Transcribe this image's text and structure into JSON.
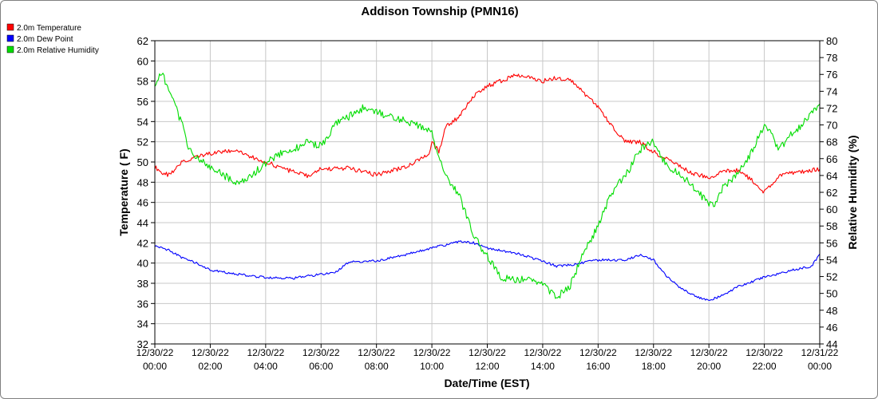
{
  "chart_data": {
    "type": "line",
    "title": "Addison Township (PMN16)",
    "xlabel": "Date/Time (EST)",
    "ylabel_left": "Temperature ( F)",
    "ylabel_right": "Relative Humidity (%)",
    "ylim_left": [
      32,
      62
    ],
    "ylim_right": [
      44,
      80
    ],
    "yticks_left": [
      "32",
      "34",
      "36",
      "38",
      "40",
      "42",
      "44",
      "46",
      "48",
      "50",
      "52",
      "54",
      "56",
      "58",
      "60",
      "62"
    ],
    "yticks_right": [
      "44",
      "46",
      "48",
      "50",
      "52",
      "54",
      "56",
      "58",
      "60",
      "62",
      "64",
      "66",
      "68",
      "70",
      "72",
      "74",
      "76",
      "78",
      "80"
    ],
    "xticks": [
      {
        "date": "12/30/22",
        "time": "00:00"
      },
      {
        "date": "12/30/22",
        "time": "02:00"
      },
      {
        "date": "12/30/22",
        "time": "04:00"
      },
      {
        "date": "12/30/22",
        "time": "06:00"
      },
      {
        "date": "12/30/22",
        "time": "08:00"
      },
      {
        "date": "12/30/22",
        "time": "10:00"
      },
      {
        "date": "12/30/22",
        "time": "12:00"
      },
      {
        "date": "12/30/22",
        "time": "14:00"
      },
      {
        "date": "12/30/22",
        "time": "16:00"
      },
      {
        "date": "12/30/22",
        "time": "18:00"
      },
      {
        "date": "12/30/22",
        "time": "20:00"
      },
      {
        "date": "12/30/22",
        "time": "22:00"
      },
      {
        "date": "12/31/22",
        "time": "00:00"
      }
    ],
    "grid": true,
    "legend_position": "top-left",
    "x_unit_note": "hours",
    "series": [
      {
        "name": "2.0m Temperature",
        "axis": "left",
        "color": "#ff0000",
        "x": [
          0,
          0.25,
          0.5,
          0.75,
          1,
          1.5,
          2,
          2.5,
          3,
          3.5,
          4,
          4.5,
          5,
          5.5,
          6,
          7,
          8,
          9,
          9.5,
          9.9,
          10,
          10.25,
          10.5,
          11,
          11.5,
          12,
          12.5,
          13,
          13.5,
          14,
          14.5,
          15,
          15.5,
          16,
          16.5,
          17,
          17.5,
          18,
          18.5,
          19,
          19.5,
          20,
          20.5,
          21,
          21.5,
          22,
          22.5,
          23,
          23.5,
          24
        ],
        "y": [
          49.5,
          49.0,
          48.7,
          49.3,
          50.0,
          50.5,
          50.8,
          51.0,
          51.2,
          50.5,
          50.0,
          49.5,
          49.0,
          48.6,
          49.3,
          49.4,
          48.7,
          49.5,
          50.2,
          50.8,
          52.0,
          51.0,
          53.5,
          54.5,
          56.5,
          57.5,
          58.0,
          58.6,
          58.5,
          58.0,
          58.3,
          58.2,
          56.8,
          55.5,
          53.5,
          52.0,
          52.0,
          51.0,
          50.3,
          49.5,
          48.8,
          48.5,
          49.0,
          49.2,
          48.3,
          47.0,
          48.6,
          48.9,
          49.1,
          49.3
        ]
      },
      {
        "name": "2.0m Dew Point",
        "axis": "left",
        "color": "#0000ff",
        "x": [
          0,
          0.5,
          1,
          1.5,
          2,
          2.5,
          3,
          3.5,
          4,
          5,
          6,
          6.5,
          7,
          8,
          9,
          10,
          11,
          11.5,
          12,
          13,
          14,
          14.5,
          15,
          16,
          17,
          17.5,
          18,
          18.5,
          19,
          19.5,
          20,
          20.5,
          21,
          22,
          23,
          23.7,
          24
        ],
        "y": [
          41.7,
          41.3,
          40.5,
          40.0,
          39.3,
          39.1,
          38.9,
          38.7,
          38.6,
          38.5,
          38.9,
          39.0,
          40.1,
          40.2,
          40.8,
          41.5,
          42.1,
          42.0,
          41.5,
          41.0,
          40.2,
          39.7,
          39.8,
          40.3,
          40.3,
          40.8,
          40.3,
          38.6,
          37.5,
          36.7,
          36.3,
          36.8,
          37.6,
          38.6,
          39.3,
          39.7,
          40.9
        ]
      },
      {
        "name": "2.0m Relative Humidity",
        "axis": "right",
        "color": "#00dd00",
        "x": [
          0,
          0.25,
          0.5,
          0.75,
          1,
          1.25,
          1.5,
          2,
          2.5,
          3,
          3.5,
          4,
          4.5,
          5,
          5.5,
          6,
          6.5,
          7,
          7.5,
          8,
          8.5,
          9,
          9.5,
          10,
          10.25,
          10.5,
          11,
          11.5,
          11.75,
          12,
          12.5,
          13,
          13.5,
          14,
          14.5,
          15,
          15.5,
          16,
          16.5,
          17,
          17.5,
          18,
          18.5,
          19,
          19.5,
          20,
          20.25,
          20.5,
          21,
          21.5,
          22,
          22.25,
          22.5,
          23,
          23.5,
          24
        ],
        "y": [
          75.0,
          76.0,
          74.5,
          72.0,
          70.0,
          67.0,
          66.0,
          65.0,
          64.0,
          63.0,
          64.0,
          65.5,
          66.5,
          67.0,
          68.0,
          67.5,
          70.0,
          71.0,
          72.0,
          71.5,
          71.0,
          70.5,
          70.0,
          69.0,
          66.0,
          64.0,
          61.5,
          57.0,
          55.5,
          54.5,
          52.0,
          51.5,
          52.0,
          51.0,
          49.5,
          51.0,
          55.0,
          58.0,
          62.0,
          64.0,
          67.0,
          68.0,
          65.0,
          64.0,
          62.5,
          60.5,
          60.5,
          62.5,
          64.0,
          66.5,
          70.0,
          69.0,
          67.0,
          69.0,
          70.5,
          72.5
        ]
      }
    ]
  }
}
